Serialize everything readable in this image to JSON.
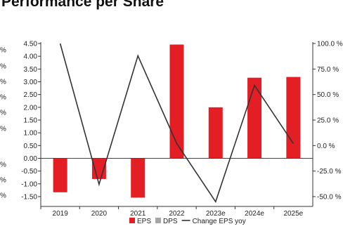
{
  "chart_data": {
    "type": "bar",
    "title": "Performance per Share",
    "categories": [
      "2019",
      "2020",
      "2021",
      "2022",
      "2023e",
      "2024e",
      "2025e"
    ],
    "series": [
      {
        "name": "EPS",
        "type": "bar",
        "axis": "left",
        "color": "#e31e24",
        "values": [
          -1.33,
          -0.81,
          -1.54,
          4.46,
          2.0,
          3.16,
          3.19
        ]
      },
      {
        "name": "DPS",
        "type": "bar",
        "axis": "left",
        "color": "#a6a6a6",
        "values": [
          0,
          0,
          0,
          0,
          0,
          0,
          0
        ]
      },
      {
        "name": "Change EPS yoy",
        "type": "line",
        "axis": "right",
        "color": "#333333",
        "values": [
          100.0,
          -38.0,
          88.0,
          2.0,
          -55.0,
          59.0,
          2.0
        ]
      }
    ],
    "left_axis": {
      "ylim": [
        -1.5,
        4.5
      ],
      "ticks": [
        "4.50",
        "4.00",
        "3.50",
        "3.00",
        "2.50",
        "2.00",
        "1.50",
        "1.00",
        "0.50",
        "0.00",
        "-0.50",
        "-1.00",
        "-1.50"
      ]
    },
    "right_axis": {
      "ylim": [
        -50,
        100
      ],
      "ticks": [
        "100.0 %",
        "75.0 %",
        "50.0 %",
        "25.0 %",
        "0.0 %",
        "-25.0 %",
        "-50.0 %"
      ]
    },
    "far_left_labels": [
      "%",
      "%",
      "%",
      "%",
      "%",
      "%",
      "%",
      "%",
      "%"
    ],
    "grid": false,
    "legend_position": "bottom"
  }
}
